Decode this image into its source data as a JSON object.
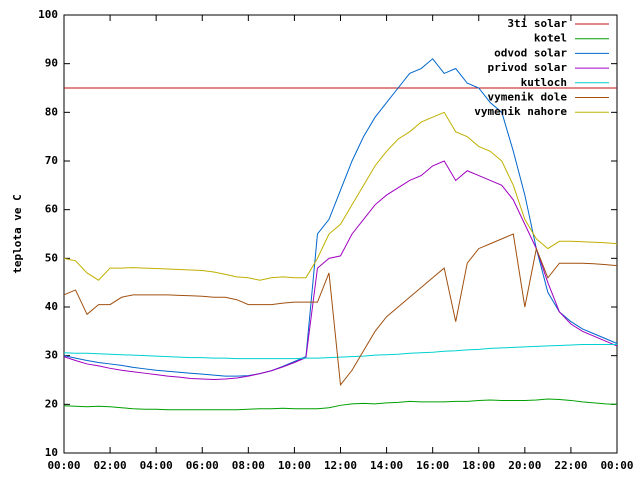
{
  "chart_data": {
    "type": "line",
    "ylabel": "teplota ve C",
    "xlim": [
      0,
      24
    ],
    "ylim": [
      10,
      100
    ],
    "yticks": [
      10,
      20,
      30,
      40,
      50,
      60,
      70,
      80,
      90,
      100
    ],
    "xticks": [
      {
        "value": 0,
        "label": "00:00"
      },
      {
        "value": 2,
        "label": "02:00"
      },
      {
        "value": 4,
        "label": "04:00"
      },
      {
        "value": 6,
        "label": "06:00"
      },
      {
        "value": 8,
        "label": "08:00"
      },
      {
        "value": 10,
        "label": "10:00"
      },
      {
        "value": 12,
        "label": "12:00"
      },
      {
        "value": 14,
        "label": "14:00"
      },
      {
        "value": 16,
        "label": "16:00"
      },
      {
        "value": 18,
        "label": "18:00"
      },
      {
        "value": 20,
        "label": "20:00"
      },
      {
        "value": 22,
        "label": "22:00"
      },
      {
        "value": 24,
        "label": "00:00"
      }
    ],
    "grid": false,
    "legend": "top-right",
    "x": [
      0,
      0.5,
      1,
      1.5,
      2,
      2.5,
      3,
      3.5,
      4,
      4.5,
      5,
      5.5,
      6,
      6.5,
      7,
      7.5,
      8,
      8.5,
      9,
      9.5,
      10,
      10.5,
      11,
      11.5,
      12,
      12.5,
      13,
      13.5,
      14,
      14.5,
      15,
      15.5,
      16,
      16.5,
      17,
      17.5,
      18,
      18.5,
      19,
      19.5,
      20,
      20.5,
      21,
      21.5,
      22,
      22.5,
      23,
      23.5,
      24
    ],
    "series": [
      {
        "name": "3ti solar",
        "color": "#c01010",
        "values": [
          85,
          85,
          85,
          85,
          85,
          85,
          85,
          85,
          85,
          85,
          85,
          85,
          85,
          85,
          85,
          85,
          85,
          85,
          85,
          85,
          85,
          85,
          85,
          85,
          85,
          85,
          85,
          85,
          85,
          85,
          85,
          85,
          85,
          85,
          85,
          85,
          85,
          85,
          85,
          85,
          85,
          85,
          85,
          85,
          85,
          85,
          85,
          85,
          85
        ]
      },
      {
        "name": "kotel",
        "color": "#00a000",
        "values": [
          19.7,
          19.6,
          19.5,
          19.6,
          19.5,
          19.3,
          19.1,
          19.0,
          19.0,
          18.9,
          18.9,
          18.9,
          18.9,
          18.9,
          18.9,
          18.9,
          19.0,
          19.1,
          19.1,
          19.2,
          19.1,
          19.1,
          19.1,
          19.3,
          19.8,
          20.1,
          20.2,
          20.1,
          20.3,
          20.4,
          20.6,
          20.5,
          20.5,
          20.5,
          20.6,
          20.6,
          20.8,
          20.9,
          20.8,
          20.8,
          20.8,
          20.9,
          21.1,
          21.0,
          20.8,
          20.5,
          20.3,
          20.1,
          20.0
        ]
      },
      {
        "name": "odvod solar",
        "color": "#0066cc",
        "values": [
          30.0,
          29.5,
          29.0,
          28.6,
          28.3,
          28.0,
          27.6,
          27.3,
          27.0,
          26.8,
          26.6,
          26.4,
          26.2,
          26.0,
          25.8,
          25.8,
          25.9,
          26.3,
          26.9,
          27.8,
          28.8,
          29.8,
          55,
          58,
          64,
          70,
          75,
          79,
          82,
          85,
          88,
          89,
          91,
          88,
          89,
          86,
          85,
          82,
          80,
          72,
          63,
          52,
          43,
          39,
          37,
          35.5,
          34.5,
          33.5,
          32.5
        ]
      },
      {
        "name": "privod solar",
        "color": "#a000c0",
        "values": [
          29.8,
          29,
          28.3,
          27.9,
          27.4,
          27,
          26.7,
          26.4,
          26.1,
          25.8,
          25.6,
          25.3,
          25.2,
          25.1,
          25.2,
          25.4,
          25.8,
          26.3,
          26.9,
          27.7,
          28.6,
          29.6,
          48,
          50,
          50.5,
          55,
          58,
          61,
          63,
          64.5,
          66,
          67,
          69,
          70,
          66,
          68,
          67,
          66,
          65,
          62,
          57,
          52,
          45,
          39,
          36.5,
          35,
          34,
          33,
          32
        ]
      },
      {
        "name": "kutloch",
        "color": "#00d0d0",
        "values": [
          30.6,
          30.5,
          30.5,
          30.4,
          30.3,
          30.2,
          30.1,
          30.0,
          29.9,
          29.8,
          29.7,
          29.6,
          29.6,
          29.5,
          29.5,
          29.4,
          29.4,
          29.4,
          29.4,
          29.4,
          29.4,
          29.5,
          29.5,
          29.6,
          29.7,
          29.8,
          29.9,
          30.1,
          30.2,
          30.3,
          30.5,
          30.6,
          30.7,
          30.9,
          31.0,
          31.2,
          31.3,
          31.5,
          31.6,
          31.7,
          31.8,
          31.9,
          32.0,
          32.1,
          32.2,
          32.3,
          32.3,
          32.3,
          32.3
        ]
      },
      {
        "name": "vymenik dole",
        "color": "#a05010",
        "values": [
          42.5,
          43.5,
          38.5,
          40.5,
          40.5,
          42,
          42.5,
          42.5,
          42.5,
          42.5,
          42.4,
          42.3,
          42.2,
          42,
          42,
          41.5,
          40.5,
          40.5,
          40.5,
          40.8,
          41,
          41,
          41,
          47,
          24,
          27,
          31,
          35,
          38,
          40,
          42,
          44,
          46,
          48,
          37,
          49,
          52,
          53,
          54,
          55,
          40,
          52,
          46,
          49,
          49,
          49,
          48.9,
          48.7,
          48.5
        ]
      },
      {
        "name": "vymenik nahore",
        "color": "#c0b000",
        "values": [
          50,
          49.5,
          47,
          45.5,
          48,
          48,
          48.1,
          48,
          47.9,
          47.8,
          47.7,
          47.6,
          47.5,
          47.2,
          46.7,
          46.2,
          46,
          45.5,
          46,
          46.2,
          46,
          46,
          50,
          55,
          57,
          61,
          65,
          69,
          72,
          74.5,
          76,
          78,
          79,
          80,
          76,
          75,
          73,
          72,
          70,
          65,
          58,
          54,
          52,
          53.5,
          53.5,
          53.4,
          53.3,
          53.2,
          53
        ]
      }
    ]
  }
}
